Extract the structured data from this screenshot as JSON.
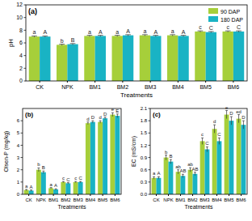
{
  "chart_data": [
    {
      "type": "bar",
      "title": "(a)",
      "x_label": "Treatments",
      "y_label": "pH",
      "categories": [
        "CK",
        "NPK",
        "BM1",
        "BM2",
        "BM3",
        "BM4",
        "BM5",
        "BM6"
      ],
      "series": [
        {
          "name": "90 DAP",
          "color": "#a6cf3a",
          "values": [
            7.0,
            5.7,
            7.1,
            7.1,
            7.2,
            7.2,
            7.8,
            7.8
          ],
          "errors": [
            0.1,
            0.1,
            0.1,
            0.1,
            0.1,
            0.1,
            0.1,
            0.1
          ],
          "letters": [
            "a",
            "b",
            "a",
            "a",
            "a",
            "a",
            "c",
            "c"
          ]
        },
        {
          "name": "180 DAP",
          "color": "#19b3c4",
          "values": [
            7.0,
            5.8,
            7.1,
            7.2,
            7.1,
            7.1,
            7.7,
            7.8
          ],
          "errors": [
            0.1,
            0.1,
            0.1,
            0.1,
            0.1,
            0.1,
            0.1,
            0.1
          ],
          "letters": [
            "A",
            "B",
            "A",
            "A",
            "A",
            "A",
            "C",
            "C"
          ]
        }
      ],
      "ylim": [
        0,
        12
      ],
      "yticks": [
        0,
        2,
        4,
        6,
        8,
        10,
        12
      ],
      "grid": false,
      "legend": "top-right"
    },
    {
      "type": "bar",
      "title": "(b)",
      "x_label": "Treatments",
      "y_label": "Olsen-P (mg/kg)",
      "categories": [
        "CK",
        "NPK",
        "BM1",
        "BM2",
        "BM3",
        "BM4",
        "BM5",
        "BM6"
      ],
      "series": [
        {
          "color": "#a6cf3a",
          "values": [
            0.35,
            2.0,
            0.5,
            1.0,
            1.0,
            5.8,
            5.9,
            6.5
          ],
          "errors": [
            0.05,
            0.15,
            0.05,
            0.05,
            0.05,
            0.1,
            0.1,
            0.15
          ],
          "letters": [
            "a",
            "b",
            "a",
            "c",
            "c",
            "d",
            "d",
            "e"
          ]
        },
        {
          "color": "#19b3c4",
          "values": [
            0.3,
            1.8,
            0.4,
            0.9,
            1.0,
            5.9,
            6.2,
            6.4
          ],
          "errors": [
            0.05,
            0.1,
            0.05,
            0.05,
            0.05,
            0.1,
            0.1,
            0.15
          ],
          "letters": [
            "A",
            "B",
            "A",
            "C",
            "C",
            "D",
            "D",
            "E"
          ]
        }
      ],
      "ylim": [
        0,
        7
      ],
      "yticks": [
        0,
        1,
        2,
        3,
        4,
        5,
        6
      ],
      "grid": false
    },
    {
      "type": "bar",
      "title": "(c)",
      "x_label": "Treatments",
      "y_label": "EC (mS/cm)",
      "categories": [
        "CK",
        "NPK",
        "BM1",
        "BM2",
        "BM3",
        "BM4",
        "BM5",
        "BM6"
      ],
      "series": [
        {
          "color": "#a6cf3a",
          "values": [
            0.4,
            0.9,
            0.55,
            0.6,
            1.3,
            1.6,
            1.95,
            1.85
          ],
          "errors": [
            0.03,
            0.06,
            0.05,
            0.05,
            0.08,
            0.1,
            0.1,
            0.1
          ],
          "letters": [
            "a",
            "b",
            "ab",
            "ab",
            "c",
            "d",
            "e",
            "ed"
          ]
        },
        {
          "color": "#19b3c4",
          "values": [
            0.4,
            0.8,
            0.45,
            0.5,
            1.1,
            1.3,
            1.8,
            1.7
          ],
          "errors": [
            0.03,
            0.05,
            0.04,
            0.04,
            0.06,
            0.08,
            0.1,
            0.1
          ],
          "letters": [
            "A",
            "B",
            "AB",
            "AB",
            "C",
            "C",
            "D",
            "D"
          ]
        }
      ],
      "ylim": [
        0,
        2.1
      ],
      "yticks": [
        {
          "value": 0,
          "label": "0.0"
        },
        0.3,
        0.6,
        0.9,
        1.2,
        1.5,
        1.8,
        2.1
      ],
      "grid": false
    }
  ]
}
